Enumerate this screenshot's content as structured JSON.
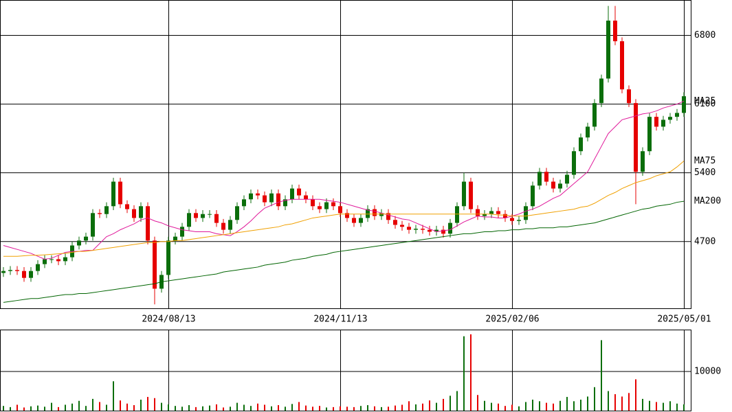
{
  "chart_data": [
    {
      "type": "candlestick",
      "categories": [
        null,
        null,
        null,
        null,
        null,
        null,
        null,
        null,
        null,
        null,
        null,
        null,
        null,
        null,
        null,
        null,
        null,
        null,
        null,
        null,
        null,
        null,
        null,
        null,
        "2024/08/13",
        null,
        null,
        null,
        null,
        null,
        null,
        null,
        null,
        null,
        null,
        null,
        null,
        null,
        null,
        null,
        null,
        null,
        null,
        null,
        null,
        null,
        null,
        null,
        null,
        "2024/11/13",
        null,
        null,
        null,
        null,
        null,
        null,
        null,
        null,
        null,
        null,
        null,
        null,
        null,
        null,
        null,
        null,
        null,
        null,
        null,
        null,
        null,
        null,
        null,
        null,
        "2025/02/06",
        null,
        null,
        null,
        null,
        null,
        null,
        null,
        null,
        null,
        null,
        null,
        null,
        null,
        null,
        null,
        null,
        null,
        null,
        null,
        null,
        null,
        null,
        null,
        null,
        "2025/05/01"
      ],
      "open": [
        4380,
        4400,
        4410,
        4400,
        4330,
        4400,
        4470,
        4520,
        4520,
        4500,
        4540,
        4660,
        4710,
        4750,
        4990,
        4980,
        5060,
        5310,
        5080,
        5030,
        4940,
        5060,
        4710,
        4220,
        4360,
        4710,
        4750,
        4850,
        4990,
        4940,
        4980,
        4980,
        4890,
        4820,
        4920,
        5060,
        5130,
        5190,
        5170,
        5100,
        5190,
        5060,
        5130,
        5240,
        5170,
        5130,
        5060,
        5030,
        5100,
        5060,
        4990,
        4940,
        4890,
        4940,
        5030,
        4960,
        4990,
        4920,
        4870,
        4850,
        4820,
        4830,
        4820,
        4800,
        4820,
        4780,
        4890,
        5060,
        5310,
        5030,
        4960,
        4980,
        5010,
        4980,
        4940,
        4910,
        4920,
        5060,
        5270,
        5410,
        5310,
        5240,
        5290,
        5380,
        5620,
        5760,
        5870,
        6110,
        6360,
        6950,
        6740,
        6250,
        6110,
        5410,
        5620,
        5970,
        5870,
        5940,
        5970,
        6010
      ],
      "high": [
        4440,
        4450,
        4450,
        4440,
        4440,
        4510,
        4560,
        4560,
        4560,
        4580,
        4700,
        4750,
        4790,
        5030,
        5030,
        5100,
        5350,
        5350,
        5120,
        5070,
        5100,
        5100,
        4750,
        4400,
        4750,
        4790,
        4890,
        5030,
        5030,
        5020,
        5020,
        5020,
        4930,
        4960,
        5100,
        5170,
        5230,
        5230,
        5210,
        5230,
        5230,
        5170,
        5280,
        5280,
        5210,
        5170,
        5100,
        5140,
        5140,
        5100,
        5030,
        4980,
        4980,
        5070,
        5070,
        5030,
        5030,
        4960,
        4910,
        4890,
        4870,
        4870,
        4860,
        4860,
        4860,
        4930,
        5100,
        5400,
        5350,
        5070,
        5020,
        5050,
        5050,
        5020,
        4980,
        4960,
        5100,
        5310,
        5450,
        5450,
        5350,
        5330,
        5420,
        5660,
        5800,
        5910,
        6150,
        6400,
        7100,
        7100,
        6780,
        6290,
        6150,
        5660,
        6010,
        6010,
        5980,
        6010,
        6050,
        6220
      ],
      "low": [
        4340,
        4360,
        4360,
        4290,
        4290,
        4360,
        4430,
        4480,
        4460,
        4460,
        4500,
        4620,
        4670,
        4710,
        4940,
        4940,
        5020,
        5040,
        4990,
        4900,
        4900,
        4670,
        4060,
        4180,
        4320,
        4670,
        4710,
        4810,
        4900,
        4900,
        4940,
        4850,
        4780,
        4780,
        4880,
        5020,
        5090,
        5130,
        5060,
        5060,
        5020,
        5020,
        5090,
        5130,
        5090,
        5020,
        4990,
        4990,
        5020,
        4950,
        4900,
        4850,
        4850,
        4900,
        4920,
        4920,
        4880,
        4830,
        4810,
        4780,
        4780,
        4780,
        4760,
        4760,
        4740,
        4740,
        4850,
        5020,
        4990,
        4920,
        4920,
        4940,
        4940,
        4900,
        4870,
        4870,
        4880,
        5020,
        5230,
        5270,
        5200,
        5200,
        5250,
        5340,
        5580,
        5720,
        5830,
        6070,
        6320,
        6700,
        6210,
        6070,
        5080,
        5370,
        5580,
        5830,
        5830,
        5900,
        5930,
        5970
      ],
      "close": [
        4400,
        4410,
        4400,
        4330,
        4400,
        4470,
        4520,
        4520,
        4500,
        4540,
        4660,
        4710,
        4750,
        4990,
        4980,
        5060,
        5310,
        5080,
        5030,
        4940,
        5060,
        4710,
        4220,
        4360,
        4710,
        4750,
        4850,
        4990,
        4940,
        4980,
        4980,
        4890,
        4820,
        4920,
        5060,
        5130,
        5190,
        5170,
        5100,
        5190,
        5060,
        5130,
        5240,
        5170,
        5130,
        5060,
        5030,
        5100,
        5060,
        4990,
        4940,
        4890,
        4940,
        5030,
        4960,
        4990,
        4920,
        4870,
        4850,
        4820,
        4830,
        4820,
        4800,
        4820,
        4780,
        4890,
        5060,
        5310,
        5030,
        4960,
        4980,
        5010,
        4980,
        4940,
        4910,
        4920,
        5060,
        5270,
        5410,
        5310,
        5240,
        5290,
        5380,
        5620,
        5760,
        5870,
        6110,
        6360,
        6950,
        6740,
        6250,
        6110,
        5410,
        5620,
        5970,
        5870,
        5940,
        5970,
        6010,
        6180
      ],
      "up_color": "#0b6e0b",
      "down_color": "#e60000",
      "series": [
        {
          "name": "MA25",
          "color": "#e0189a",
          "values": [
            4660,
            4640,
            4620,
            4600,
            4580,
            4550,
            4520,
            4530,
            4560,
            4590,
            4600,
            4600,
            4610,
            4610,
            4680,
            4750,
            4780,
            4820,
            4850,
            4880,
            4920,
            4940,
            4910,
            4890,
            4860,
            4840,
            4820,
            4810,
            4800,
            4800,
            4800,
            4780,
            4770,
            4760,
            4800,
            4850,
            4910,
            4980,
            5040,
            5070,
            5100,
            5120,
            5130,
            5130,
            5130,
            5130,
            5130,
            5120,
            5110,
            5100,
            5080,
            5060,
            5040,
            5020,
            5010,
            4990,
            4970,
            4950,
            4930,
            4920,
            4890,
            4860,
            4830,
            4800,
            4810,
            4820,
            4860,
            4900,
            4930,
            4960,
            4950,
            4950,
            4940,
            4940,
            4960,
            4980,
            5010,
            5030,
            5060,
            5100,
            5140,
            5170,
            5230,
            5290,
            5350,
            5410,
            5540,
            5670,
            5800,
            5870,
            5940,
            5960,
            5980,
            6000,
            6010,
            6030,
            6060,
            6080,
            6100,
            6130
          ]
        },
        {
          "name": "MA75",
          "color": "#f0a000",
          "values": [
            4550,
            4550,
            4550,
            4555,
            4560,
            4560,
            4565,
            4570,
            4575,
            4580,
            4590,
            4600,
            4600,
            4610,
            4620,
            4630,
            4640,
            4650,
            4660,
            4670,
            4680,
            4690,
            4690,
            4700,
            4700,
            4710,
            4710,
            4720,
            4730,
            4740,
            4750,
            4760,
            4770,
            4780,
            4790,
            4800,
            4810,
            4820,
            4830,
            4840,
            4850,
            4870,
            4880,
            4900,
            4920,
            4940,
            4950,
            4960,
            4970,
            4980,
            4980,
            4980,
            4980,
            4980,
            4980,
            4980,
            4980,
            4980,
            4980,
            4980,
            4980,
            4980,
            4980,
            4980,
            4980,
            4980,
            4980,
            4980,
            4980,
            4980,
            4980,
            4980,
            4970,
            4970,
            4960,
            4960,
            4960,
            4970,
            4980,
            4990,
            5000,
            5010,
            5020,
            5030,
            5050,
            5060,
            5090,
            5130,
            5170,
            5200,
            5240,
            5270,
            5300,
            5320,
            5340,
            5370,
            5390,
            5410,
            5460,
            5520
          ]
        },
        {
          "name": "MA200",
          "color": "#006400",
          "values": [
            4080,
            4090,
            4100,
            4110,
            4120,
            4120,
            4130,
            4140,
            4150,
            4160,
            4160,
            4170,
            4170,
            4180,
            4190,
            4200,
            4210,
            4220,
            4230,
            4240,
            4250,
            4260,
            4270,
            4290,
            4300,
            4310,
            4320,
            4330,
            4340,
            4350,
            4360,
            4370,
            4390,
            4400,
            4410,
            4420,
            4430,
            4440,
            4460,
            4470,
            4480,
            4490,
            4510,
            4520,
            4530,
            4550,
            4560,
            4570,
            4590,
            4600,
            4610,
            4620,
            4630,
            4640,
            4650,
            4660,
            4670,
            4680,
            4690,
            4700,
            4710,
            4720,
            4730,
            4740,
            4750,
            4760,
            4770,
            4780,
            4780,
            4790,
            4800,
            4800,
            4810,
            4810,
            4820,
            4820,
            4830,
            4830,
            4840,
            4840,
            4840,
            4850,
            4850,
            4860,
            4870,
            4880,
            4890,
            4910,
            4930,
            4950,
            4970,
            4990,
            5010,
            5030,
            5040,
            5060,
            5070,
            5080,
            5100,
            5110
          ]
        }
      ],
      "ylim": [
        4020,
        7160
      ],
      "yticks": [
        4700,
        5400,
        6100,
        6800
      ],
      "grid": true
    },
    {
      "type": "bar",
      "values": [
        1200,
        900,
        1500,
        800,
        1100,
        1300,
        1000,
        2000,
        900,
        1500,
        1800,
        2500,
        1200,
        3000,
        2200,
        1500,
        7500,
        2600,
        1800,
        1400,
        2800,
        3500,
        3200,
        2000,
        1600,
        1200,
        1000,
        1400,
        900,
        1100,
        1300,
        1600,
        800,
        1000,
        2000,
        1500,
        1200,
        1800,
        1500,
        1100,
        1400,
        1000,
        1700,
        2200,
        1300,
        1000,
        1200,
        800,
        900,
        1100,
        1000,
        900,
        1200,
        1400,
        1100,
        900,
        1000,
        1300,
        1500,
        2400,
        1600,
        1800,
        2600,
        2000,
        3000,
        3800,
        5000,
        19000,
        19500,
        4000,
        2500,
        2000,
        1800,
        1200,
        1500,
        1100,
        2200,
        2800,
        2400,
        2000,
        1800,
        2500,
        3500,
        2400,
        2800,
        3600,
        6000,
        18000,
        5000,
        4200,
        3600,
        4500,
        8000,
        3000,
        2500,
        2200,
        2000,
        2400,
        1800,
        1600
      ],
      "ylim": [
        0,
        20700
      ],
      "yticks": [
        10000
      ],
      "grid": true
    }
  ]
}
